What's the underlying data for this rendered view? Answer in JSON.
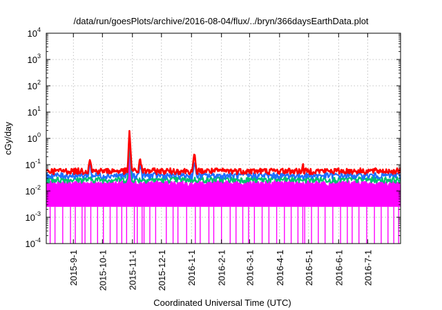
{
  "chart_data": {
    "type": "line",
    "title": "/data/run/goesPlots/archive/2016-08-04/flux/../bryn/366daysEarthData.plot",
    "xlabel": "Coordinated Universal Time (UTC)",
    "ylabel": "cGy/day",
    "y_scale": "log",
    "ylim": [
      0.0001,
      10000
    ],
    "xlim": [
      "2015-08-04",
      "2016-08-04"
    ],
    "grid": true,
    "legend": "none",
    "y_ticks": [
      {
        "value": 0.0001,
        "base": "10",
        "exp": "-4"
      },
      {
        "value": 0.001,
        "base": "10",
        "exp": "-3"
      },
      {
        "value": 0.01,
        "base": "10",
        "exp": "-2"
      },
      {
        "value": 0.1,
        "base": "10",
        "exp": "-1"
      },
      {
        "value": 1,
        "base": "10",
        "exp": "0"
      },
      {
        "value": 10,
        "base": "10",
        "exp": "1"
      },
      {
        "value": 100,
        "base": "10",
        "exp": "2"
      },
      {
        "value": 1000,
        "base": "10",
        "exp": "3"
      },
      {
        "value": 10000,
        "base": "10",
        "exp": "4"
      }
    ],
    "x_ticks": [
      {
        "date": "2015-09-01",
        "label": "2015-9-1"
      },
      {
        "date": "2015-10-01",
        "label": "2015-10-1"
      },
      {
        "date": "2015-11-01",
        "label": "2015-11-1"
      },
      {
        "date": "2015-12-01",
        "label": "2015-12-1"
      },
      {
        "date": "2016-01-01",
        "label": "2016-1-1"
      },
      {
        "date": "2016-02-01",
        "label": "2016-2-1"
      },
      {
        "date": "2016-03-01",
        "label": "2016-3-1"
      },
      {
        "date": "2016-04-01",
        "label": "2016-4-1"
      },
      {
        "date": "2016-05-01",
        "label": "2016-5-1"
      },
      {
        "date": "2016-06-01",
        "label": "2016-6-1"
      },
      {
        "date": "2016-07-01",
        "label": "2016-7-1"
      }
    ],
    "series": [
      {
        "color": "#ff0000",
        "baseline": 0.06,
        "points": [
          {
            "x": "2015-08-04",
            "y": 0.06
          },
          {
            "x": "2015-09-16",
            "y": 0.06
          },
          {
            "x": "2015-09-18",
            "y": 0.2
          },
          {
            "x": "2015-09-20",
            "y": 0.06
          },
          {
            "x": "2015-10-27",
            "y": 0.06
          },
          {
            "x": "2015-10-29",
            "y": 2.2
          },
          {
            "x": "2015-10-31",
            "y": 0.1
          },
          {
            "x": "2015-11-01",
            "y": 0.06
          },
          {
            "x": "2015-11-07",
            "y": 0.06
          },
          {
            "x": "2015-11-09",
            "y": 0.2
          },
          {
            "x": "2015-11-11",
            "y": 0.06
          },
          {
            "x": "2016-01-02",
            "y": 0.06
          },
          {
            "x": "2016-01-04",
            "y": 0.27
          },
          {
            "x": "2016-01-06",
            "y": 0.06
          },
          {
            "x": "2016-04-24",
            "y": 0.06
          },
          {
            "x": "2016-04-25",
            "y": 0.11
          },
          {
            "x": "2016-04-26",
            "y": 0.06
          },
          {
            "x": "2016-08-04",
            "y": 0.06
          }
        ]
      },
      {
        "color": "#1f6fff",
        "baseline": 0.04,
        "points": [
          {
            "x": "2015-08-04",
            "y": 0.04
          },
          {
            "x": "2015-09-16",
            "y": 0.04
          },
          {
            "x": "2015-09-18",
            "y": 0.12
          },
          {
            "x": "2015-09-20",
            "y": 0.04
          },
          {
            "x": "2015-10-27",
            "y": 0.04
          },
          {
            "x": "2015-10-29",
            "y": 1.5
          },
          {
            "x": "2015-10-31",
            "y": 0.07
          },
          {
            "x": "2015-11-01",
            "y": 0.04
          },
          {
            "x": "2015-11-07",
            "y": 0.04
          },
          {
            "x": "2015-11-09",
            "y": 0.12
          },
          {
            "x": "2015-11-11",
            "y": 0.04
          },
          {
            "x": "2016-01-02",
            "y": 0.04
          },
          {
            "x": "2016-01-04",
            "y": 0.14
          },
          {
            "x": "2016-01-06",
            "y": 0.04
          },
          {
            "x": "2016-08-04",
            "y": 0.04
          }
        ]
      },
      {
        "color": "#00c070",
        "baseline": 0.028,
        "points": [
          {
            "x": "2015-08-04",
            "y": 0.028
          },
          {
            "x": "2015-10-27",
            "y": 0.028
          },
          {
            "x": "2015-10-29",
            "y": 0.8
          },
          {
            "x": "2015-10-31",
            "y": 0.04
          },
          {
            "x": "2015-11-01",
            "y": 0.028
          },
          {
            "x": "2016-08-04",
            "y": 0.028
          }
        ]
      },
      {
        "color": "#ff00ff",
        "baseline": 0.02,
        "floor": 0.0025,
        "points": [
          {
            "x": "2015-08-04",
            "y": 0.02
          },
          {
            "x": "2015-10-27",
            "y": 0.02
          },
          {
            "x": "2015-10-29",
            "y": 0.6
          },
          {
            "x": "2015-10-31",
            "y": 0.03
          },
          {
            "x": "2015-11-01",
            "y": 0.02
          },
          {
            "x": "2016-08-04",
            "y": 0.02
          }
        ]
      }
    ],
    "dropout_dates": [
      "2015-08-08",
      "2015-08-13",
      "2015-08-21",
      "2015-08-29",
      "2015-09-03",
      "2015-09-10",
      "2015-09-13",
      "2015-09-19",
      "2015-09-26",
      "2015-10-02",
      "2015-10-09",
      "2015-10-16",
      "2015-10-21",
      "2015-10-26",
      "2015-11-03",
      "2015-11-06",
      "2015-11-11",
      "2015-11-13",
      "2015-11-19",
      "2015-11-25",
      "2015-12-06",
      "2015-12-13",
      "2015-12-18",
      "2015-12-27",
      "2016-01-05",
      "2016-01-10",
      "2016-01-19",
      "2016-01-24",
      "2016-02-01",
      "2016-02-10",
      "2016-02-16",
      "2016-02-23",
      "2016-02-29",
      "2016-03-06",
      "2016-03-14",
      "2016-03-21",
      "2016-03-29",
      "2016-04-06",
      "2016-04-13",
      "2016-04-20",
      "2016-04-25",
      "2016-04-27",
      "2016-05-04",
      "2016-05-11",
      "2016-05-18",
      "2016-05-26",
      "2016-06-03",
      "2016-06-10",
      "2016-06-15",
      "2016-06-22",
      "2016-06-30",
      "2016-07-08",
      "2016-07-15",
      "2016-07-22",
      "2016-07-28",
      "2016-08-02"
    ]
  }
}
